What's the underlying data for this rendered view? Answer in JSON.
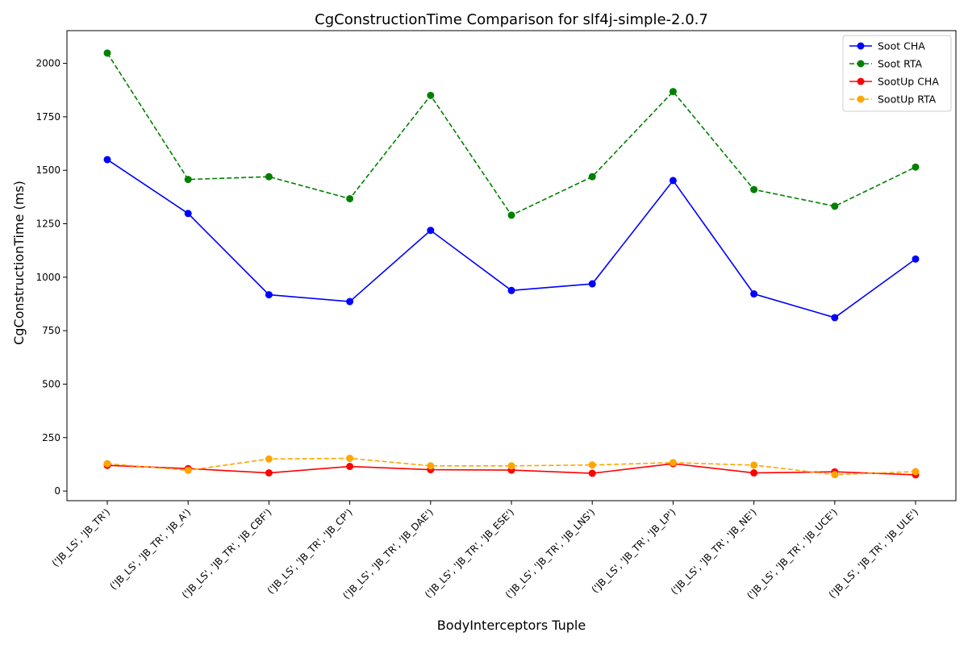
{
  "chart_data": {
    "type": "line",
    "title": "CgConstructionTime Comparison for slf4j-simple-2.0.7",
    "xlabel": "BodyInterceptors Tuple",
    "ylabel": "CgConstructionTime (ms)",
    "categories": [
      "('JB_LS', 'JB_TR')",
      "('JB_LS', 'JB_TR', 'JB_A')",
      "('JB_LS', 'JB_TR', 'JB_CBF')",
      "('JB_LS', 'JB_TR', 'JB_CP')",
      "('JB_LS', 'JB_TR', 'JB_DAE')",
      "('JB_LS', 'JB_TR', 'JB_ESE')",
      "('JB_LS', 'JB_TR', 'JB_LNS')",
      "('JB_LS', 'JB_TR', 'JB_LP')",
      "('JB_LS', 'JB_TR', 'JB_NE')",
      "('JB_LS', 'JB_TR', 'JB_UCE')",
      "('JB_LS', 'JB_TR', 'JB_ULE')"
    ],
    "series": [
      {
        "name": "Soot CHA",
        "color": "#0000ff",
        "dash": false,
        "values": [
          1550,
          1298,
          918,
          886,
          1219,
          938,
          969,
          1452,
          922,
          811,
          1085
        ]
      },
      {
        "name": "Soot RTA",
        "color": "#008000",
        "dash": true,
        "values": [
          2048,
          1457,
          1470,
          1367,
          1850,
          1290,
          1470,
          1868,
          1410,
          1332,
          1515
        ]
      },
      {
        "name": "SootUp CHA",
        "color": "#ff0000",
        "dash": false,
        "values": [
          120,
          105,
          85,
          115,
          100,
          98,
          83,
          128,
          85,
          90,
          76
        ]
      },
      {
        "name": "SootUp RTA",
        "color": "#ffa500",
        "dash": true,
        "values": [
          128,
          97,
          150,
          153,
          118,
          118,
          122,
          133,
          121,
          77,
          91
        ]
      }
    ],
    "yticks": [
      0,
      250,
      500,
      750,
      1000,
      1250,
      1500,
      1750,
      2000
    ],
    "ylim": [
      -45,
      2153
    ],
    "grid": false,
    "legend_position": "top-right"
  }
}
